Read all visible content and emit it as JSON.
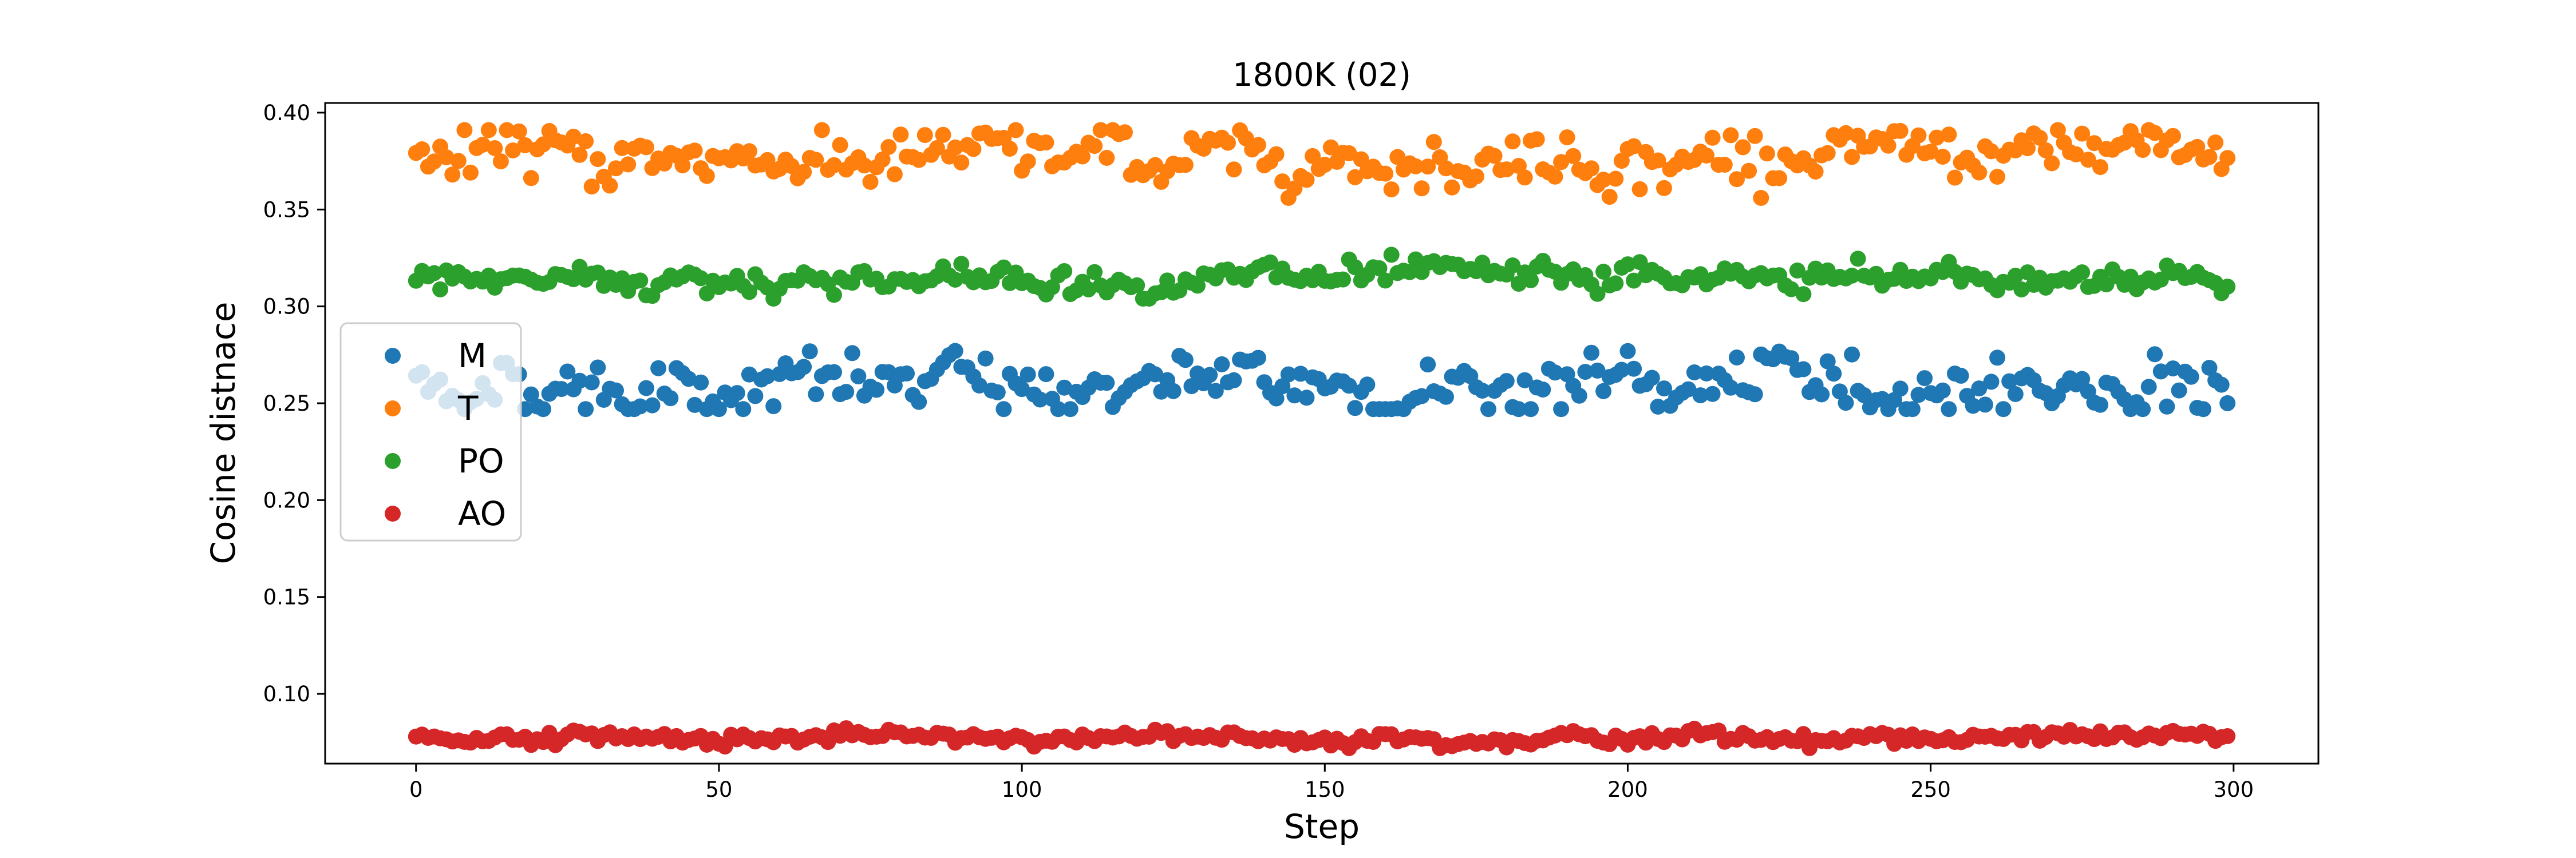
{
  "chart_data": {
    "type": "scatter",
    "title": "1800K (02)",
    "xlabel": "Step",
    "ylabel": "Cosine distnace",
    "xlim": [
      -15,
      314
    ],
    "ylim": [
      0.064,
      0.405
    ],
    "xticks": [
      0,
      50,
      100,
      150,
      200,
      250,
      300
    ],
    "yticks": [
      0.1,
      0.15,
      0.2,
      0.25,
      0.3,
      0.35,
      0.4
    ],
    "ytick_labels": [
      "0.10",
      "0.15",
      "0.20",
      "0.25",
      "0.30",
      "0.35",
      "0.40"
    ],
    "grid": false,
    "legend_position": "center-left",
    "n_points": 300,
    "series": [
      {
        "name": "M",
        "color": "#1f77b4",
        "mean": 0.259,
        "spread": 0.008,
        "min": 0.247,
        "max": 0.277
      },
      {
        "name": "T",
        "color": "#ff7f0e",
        "mean": 0.377,
        "spread": 0.007,
        "min": 0.356,
        "max": 0.391
      },
      {
        "name": "PO",
        "color": "#2ca02c",
        "mean": 0.314,
        "spread": 0.004,
        "min": 0.304,
        "max": 0.327
      },
      {
        "name": "AO",
        "color": "#d62728",
        "mean": 0.0775,
        "spread": 0.0018,
        "min": 0.072,
        "max": 0.085
      }
    ]
  }
}
